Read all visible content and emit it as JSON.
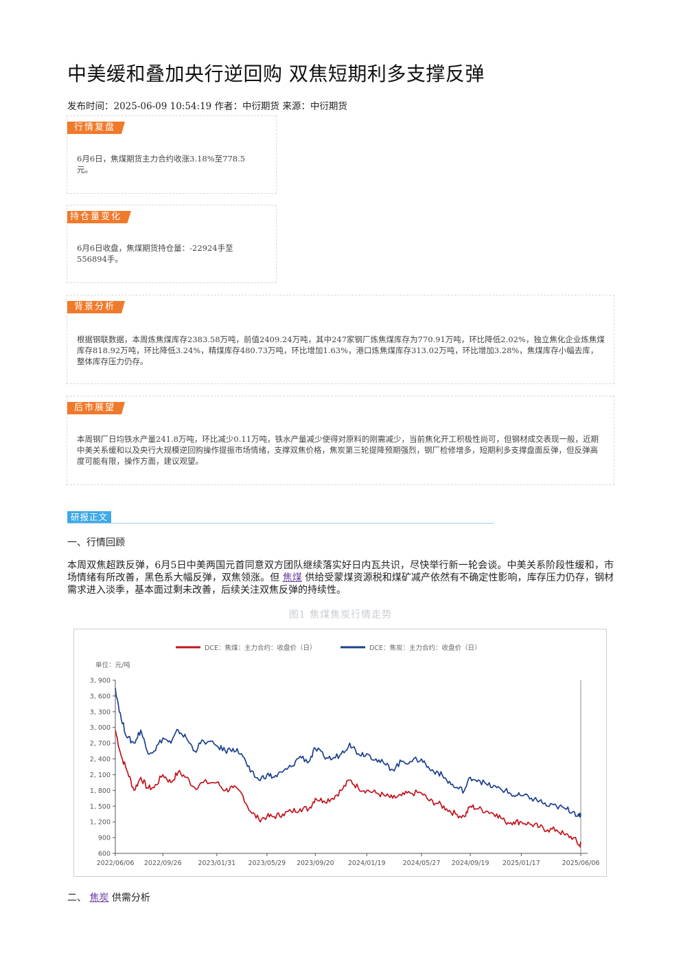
{
  "article": {
    "title": "中美缓和叠加央行逆回购 双焦短期利多支撑反弹",
    "meta": "发布时间：2025-06-09 10:54:19 作者：中衍期货 来源：中衍期货"
  },
  "cards": {
    "review": {
      "tag": "行情复盘",
      "text": "6月6日，焦煤期货主力合约收涨3.18%至778.5元。"
    },
    "position": {
      "tag": "持仓量变化",
      "text": "6月6日收盘，焦煤期货持仓量：-22924手至556894手。"
    },
    "background": {
      "tag": "背景分析",
      "text": "根据钢联数据，本周炼焦煤库存2383.58万吨，前值2409.24万吨，其中247家钢厂炼焦煤库存为770.91万吨，环比降低2.02%，独立焦化企业炼焦煤库存818.92万吨，环比降低3.24%，精煤库存480.73万吨，环比增加1.63%，港口炼焦煤库存313.02万吨，环比增加3.28%，焦煤库存小幅去库，整体库存压力仍存。"
    },
    "outlook": {
      "tag": "后市展望",
      "text": "本周钢厂日均铁水产量241.8万吨，环比减少0.11万吨，铁水产量减少使得对原料的刚需减少，当前焦化开工积极性尚可，但钢材成交表现一般，近期中美关系缓和以及央行大规模逆回购操作提振市场情绪，支撑双焦价格，焦炭第三轮提降预期强烈，钢厂检修增多，短期利多支撑盘面反弹，但反弹高度可能有限，操作方面，建议观望。"
    }
  },
  "report": {
    "tag": "研报正文",
    "section1": "一、行情回顾",
    "para_before": "本周双焦超跌反弹，6月5日中美两国元首同意双方团队继续落实好日内瓦共识，尽快举行新一轮会谈。中美关系阶段性缓和，市场情绪有所改善，黑色系大幅反弹，双焦领涨。但 ",
    "para_link": "焦煤",
    "para_after": " 供给受蒙煤资源税和煤矿减产依然有不确定性影响，库存压力仍存，钢材需求进入淡季，基本面过剩未改善，后续关注双焦反弹的持续性。",
    "figure_caption": "图1 焦煤焦炭行情走势",
    "section2_prefix": "二、 ",
    "section2_link": "焦炭",
    "section2_suffix": " 供需分析"
  },
  "chart_data": {
    "type": "line",
    "unit_label": "单位：元/吨",
    "ylim": [
      600,
      3900
    ],
    "yticks": [
      600,
      900,
      1200,
      1500,
      1800,
      2100,
      2400,
      2700,
      3000,
      3300,
      3600,
      3900
    ],
    "ytick_labels": [
      "600",
      "900",
      "1, 200",
      "1, 500",
      "1, 800",
      "2, 100",
      "2, 400",
      "2, 700",
      "3, 000",
      "3, 300",
      "3, 600",
      "3, 900"
    ],
    "xtick_labels": [
      "2022/06/06",
      "2022/09/26",
      "2023/01/31",
      "2023/05/29",
      "2023/09/20",
      "2024/01/19",
      "2024/05/27",
      "2024/09/19",
      "2025/01/17",
      "2025/06/06"
    ],
    "grid": false,
    "legend_position": "top",
    "series": [
      {
        "name": "DCE：焦煤：主力合约：收盘价（日）",
        "color": "#c0141c",
        "x": [
          "2022/06/06",
          "2022/06/20",
          "2022/07/05",
          "2022/07/20",
          "2022/08/05",
          "2022/08/20",
          "2022/09/05",
          "2022/09/26",
          "2022/10/15",
          "2022/11/01",
          "2022/11/20",
          "2022/12/10",
          "2022/12/30",
          "2023/01/31",
          "2023/02/20",
          "2023/03/10",
          "2023/03/30",
          "2023/04/20",
          "2023/05/10",
          "2023/05/29",
          "2023/06/15",
          "2023/07/05",
          "2023/07/25",
          "2023/08/15",
          "2023/09/05",
          "2023/09/20",
          "2023/10/10",
          "2023/10/30",
          "2023/11/20",
          "2023/12/10",
          "2023/12/30",
          "2024/01/19",
          "2024/02/10",
          "2024/03/01",
          "2024/03/20",
          "2024/04/10",
          "2024/04/30",
          "2024/05/27",
          "2024/06/15",
          "2024/07/05",
          "2024/07/25",
          "2024/08/15",
          "2024/09/05",
          "2024/09/19",
          "2024/10/08",
          "2024/10/30",
          "2024/11/20",
          "2024/12/10",
          "2024/12/30",
          "2025/01/17",
          "2025/02/10",
          "2025/03/01",
          "2025/03/20",
          "2025/04/10",
          "2025/04/30",
          "2025/05/20",
          "2025/06/03",
          "2025/06/06"
        ],
        "y": [
          2950,
          2450,
          2150,
          1800,
          2050,
          1850,
          1850,
          2100,
          1950,
          2150,
          2050,
          1850,
          1950,
          1950,
          1800,
          1850,
          1750,
          1400,
          1250,
          1300,
          1300,
          1350,
          1400,
          1450,
          1450,
          1650,
          1600,
          1650,
          1800,
          2000,
          1850,
          1800,
          1750,
          1700,
          1650,
          1700,
          1750,
          1750,
          1600,
          1550,
          1450,
          1350,
          1300,
          1500,
          1450,
          1400,
          1350,
          1200,
          1200,
          1200,
          1150,
          1100,
          1050,
          1050,
          950,
          900,
          750,
          780
        ]
      },
      {
        "name": "DCE：焦炭：主力合约：收盘价（日）",
        "color": "#1b3f8c",
        "x": [
          "2022/06/06",
          "2022/06/20",
          "2022/07/05",
          "2022/07/20",
          "2022/08/05",
          "2022/08/20",
          "2022/09/05",
          "2022/09/26",
          "2022/10/15",
          "2022/11/01",
          "2022/11/20",
          "2022/12/10",
          "2022/12/30",
          "2023/01/31",
          "2023/02/20",
          "2023/03/10",
          "2023/03/30",
          "2023/04/20",
          "2023/05/10",
          "2023/05/29",
          "2023/06/15",
          "2023/07/05",
          "2023/07/25",
          "2023/08/15",
          "2023/09/05",
          "2023/09/20",
          "2023/10/10",
          "2023/10/30",
          "2023/11/20",
          "2023/12/10",
          "2023/12/30",
          "2024/01/19",
          "2024/02/10",
          "2024/03/01",
          "2024/03/20",
          "2024/04/10",
          "2024/04/30",
          "2024/05/27",
          "2024/06/15",
          "2024/07/05",
          "2024/07/25",
          "2024/08/15",
          "2024/09/05",
          "2024/09/19",
          "2024/10/08",
          "2024/10/30",
          "2024/11/20",
          "2024/12/10",
          "2024/12/30",
          "2025/01/17",
          "2025/02/10",
          "2025/03/01",
          "2025/03/20",
          "2025/04/10",
          "2025/04/30",
          "2025/05/20",
          "2025/06/03",
          "2025/06/06"
        ],
        "y": [
          3750,
          3150,
          2800,
          2700,
          2950,
          2550,
          2550,
          2800,
          2700,
          2950,
          2800,
          2550,
          2750,
          2650,
          2550,
          2600,
          2500,
          2150,
          2000,
          2100,
          2050,
          2150,
          2250,
          2450,
          2350,
          2600,
          2450,
          2400,
          2500,
          2700,
          2500,
          2500,
          2400,
          2300,
          2200,
          2350,
          2350,
          2400,
          2200,
          2150,
          2000,
          1850,
          1800,
          2050,
          2000,
          1900,
          1850,
          1800,
          1700,
          1700,
          1650,
          1600,
          1500,
          1500,
          1450,
          1400,
          1300,
          1350
        ]
      }
    ]
  }
}
